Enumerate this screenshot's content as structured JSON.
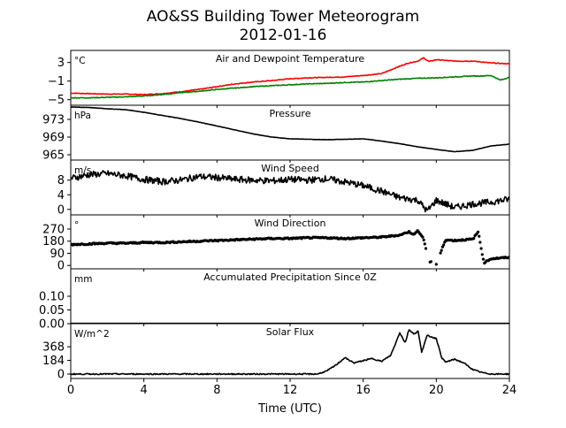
{
  "title": "AO&SS Building Tower Meteorogram",
  "subtitle": "2012-01-16",
  "xlabel": "Time (UTC)",
  "x_ticks": [
    "0",
    "4",
    "8",
    "12",
    "16",
    "20",
    "24"
  ],
  "chart_data": [
    {
      "type": "line",
      "title": "Air and Dewpoint Temperature",
      "unit": "°C",
      "yticks": [
        "3",
        "−1",
        "−5"
      ],
      "ytick_values": [
        3,
        -1,
        -5
      ],
      "ylim": [
        -6.2,
        5.6
      ],
      "xlim": [
        0,
        24
      ],
      "series": [
        {
          "color": "#ff0000",
          "x": [
            0,
            1,
            2,
            3,
            4,
            5,
            6,
            7,
            8,
            9,
            10,
            11,
            12,
            13,
            14,
            15,
            16,
            17,
            18,
            18.5,
            19,
            19.3,
            19.6,
            20,
            21,
            22,
            23,
            24
          ],
          "y": [
            -3.6,
            -3.7,
            -3.8,
            -3.8,
            -3.9,
            -3.7,
            -3.3,
            -2.8,
            -2.2,
            -1.6,
            -1.2,
            -0.9,
            -0.5,
            -0.3,
            -0.2,
            -0.1,
            0.2,
            0.6,
            2.2,
            2.9,
            3.3,
            4.0,
            3.2,
            3.6,
            3.3,
            3.3,
            2.9,
            2.7
          ]
        },
        {
          "color": "#008000",
          "x": [
            0,
            1,
            2,
            3,
            4,
            5,
            6,
            7,
            8,
            9,
            10,
            11,
            12,
            13,
            14,
            15,
            16,
            17,
            18,
            19,
            20,
            21,
            22,
            22.5,
            23,
            23.5,
            24
          ],
          "y": [
            -4.6,
            -4.6,
            -4.5,
            -4.4,
            -4.2,
            -3.9,
            -3.5,
            -3.2,
            -2.8,
            -2.5,
            -2.2,
            -2.0,
            -1.8,
            -1.6,
            -1.5,
            -1.3,
            -1.2,
            -0.9,
            -0.6,
            -0.4,
            -0.3,
            -0.1,
            0.1,
            0.1,
            0.2,
            -0.8,
            -0.2
          ]
        }
      ]
    },
    {
      "type": "line",
      "title": "Pressure",
      "unit": "hPa",
      "yticks": [
        "973",
        "969",
        "965"
      ],
      "ytick_values": [
        973,
        969,
        965
      ],
      "ylim": [
        963.8,
        976.2
      ],
      "xlim": [
        0,
        24
      ],
      "series": [
        {
          "color": "#000000",
          "x": [
            0,
            1,
            2,
            3,
            4,
            5,
            6,
            7,
            8,
            9,
            10,
            11,
            12,
            13,
            14,
            15,
            16,
            17,
            18,
            19,
            20,
            21,
            22,
            23,
            24
          ],
          "y": [
            975.8,
            975.7,
            975.4,
            975.2,
            974.6,
            973.9,
            973.2,
            972.4,
            971.5,
            970.6,
            969.7,
            969.0,
            968.6,
            968.5,
            968.4,
            968.5,
            968.6,
            968.1,
            967.5,
            966.8,
            966.2,
            965.7,
            966.0,
            967.0,
            967.4
          ]
        }
      ]
    },
    {
      "type": "line",
      "title": "Wind Speed",
      "unit": "m/s",
      "yticks": [
        "8",
        "4",
        "0"
      ],
      "ytick_values": [
        8,
        4,
        0
      ],
      "ylim": [
        -1.5,
        13.5
      ],
      "xlim": [
        0,
        24
      ],
      "series": [
        {
          "color": "#000000",
          "x": [
            0,
            1,
            2,
            3,
            4,
            5,
            6,
            7,
            8,
            9,
            10,
            11,
            12,
            13,
            14,
            15,
            16,
            17,
            18,
            19,
            19.5,
            20,
            21,
            22,
            23,
            24
          ],
          "y": [
            8.5,
            9.5,
            9.8,
            9.2,
            8.2,
            7.6,
            8.0,
            9.0,
            8.7,
            8.2,
            8.0,
            7.8,
            8.2,
            8.0,
            8.4,
            7.5,
            6.5,
            5.0,
            3.2,
            2.5,
            -0.5,
            2.5,
            0.5,
            1.5,
            2.0,
            2.8
          ]
        }
      ]
    },
    {
      "type": "scatter",
      "title": "Wind Direction",
      "unit": "°",
      "yticks": [
        "270",
        "180",
        "90",
        "0"
      ],
      "ytick_values": [
        270,
        180,
        90,
        0
      ],
      "ylim": [
        -25,
        375
      ],
      "xlim": [
        0,
        24
      ],
      "series": [
        {
          "color": "#000000",
          "x": [
            0,
            1,
            2,
            3,
            4,
            5,
            6,
            7,
            8,
            9,
            10,
            11,
            12,
            13,
            14,
            15,
            16,
            17,
            18,
            18.5,
            18.8,
            19,
            19.3,
            19.6,
            20,
            20.5,
            21,
            22,
            22.3,
            22.6,
            23,
            24
          ],
          "y": [
            155,
            160,
            165,
            165,
            170,
            170,
            175,
            180,
            185,
            190,
            195,
            200,
            200,
            205,
            205,
            200,
            205,
            210,
            225,
            250,
            230,
            260,
            200,
            30,
            10,
            190,
            185,
            195,
            250,
            20,
            50,
            60
          ]
        }
      ]
    },
    {
      "type": "line",
      "title": "Accumulated Precipitation Since 0Z",
      "unit": "mm",
      "yticks": [
        "0.10",
        "0.05",
        "0.00"
      ],
      "ytick_values": [
        0.1,
        0.05,
        0.0
      ],
      "ylim": [
        0,
        0.2
      ],
      "xlim": [
        0,
        24
      ],
      "series": [
        {
          "color": "#000000",
          "x": [
            0,
            24
          ],
          "y": [
            0,
            0
          ]
        }
      ]
    },
    {
      "type": "line",
      "title": "Solar Flux",
      "unit": "W/m^2",
      "yticks": [
        "368",
        "184",
        "0"
      ],
      "ytick_values": [
        368,
        184,
        0
      ],
      "ylim": [
        -60,
        680
      ],
      "xlim": [
        0,
        24
      ],
      "series": [
        {
          "color": "#000000",
          "x": [
            0,
            13.5,
            14,
            14.5,
            15,
            15.5,
            16,
            16.5,
            17,
            17.5,
            17.8,
            18,
            18.3,
            18.5,
            18.8,
            19,
            19.2,
            19.5,
            20,
            20.3,
            20.5,
            21,
            21.5,
            22,
            22.5,
            23,
            24
          ],
          "y": [
            0,
            0,
            40,
            120,
            220,
            150,
            180,
            210,
            170,
            250,
            430,
            560,
            420,
            600,
            540,
            580,
            300,
            520,
            480,
            220,
            160,
            200,
            150,
            60,
            20,
            0,
            0
          ]
        }
      ]
    }
  ]
}
